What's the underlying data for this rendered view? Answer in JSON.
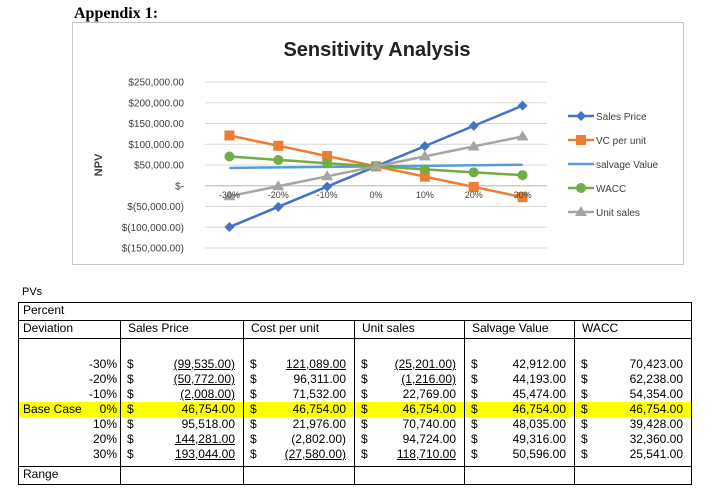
{
  "appendix_title": "Appendix 1:",
  "chart_data": {
    "type": "line",
    "title": "Sensitivity Analysis",
    "ylabel": "NPV",
    "xlabel": "",
    "categories": [
      "-30%",
      "-20%",
      "-10%",
      "0%",
      "10%",
      "20%",
      "30%"
    ],
    "ylim": [
      -150000,
      250000
    ],
    "ytick_labels": [
      "$250,000.00",
      "$200,000.00",
      "$150,000.00",
      "$100,000.00",
      "$50,000.00",
      "$-",
      "$(50,000.00)",
      "$(100,000.00)",
      "$(150,000.00)"
    ],
    "legend_position": "right",
    "series": [
      {
        "name": "Sales Price",
        "color": "#4472c4",
        "marker": "diamond",
        "values": [
          -99535,
          -50772,
          -2008,
          46754,
          95518,
          144281,
          193044
        ]
      },
      {
        "name": "VC per unit",
        "color": "#ed7d31",
        "marker": "square",
        "values": [
          121089,
          96311,
          71532,
          46754,
          21976,
          -2802,
          -27580
        ]
      },
      {
        "name": "salvage Value",
        "color": "#5b9bd5",
        "marker": "none",
        "values": [
          42912,
          44193,
          45474,
          46754,
          48035,
          49316,
          50596
        ]
      },
      {
        "name": "WACC",
        "color": "#70ad47",
        "marker": "circle",
        "values": [
          70423,
          62238,
          54354,
          46754,
          39428,
          32360,
          25541
        ]
      },
      {
        "name": "Unit sales",
        "color": "#a5a5a5",
        "marker": "triangle",
        "values": [
          -25201,
          -1216,
          22769,
          46754,
          70740,
          94724,
          118710
        ]
      }
    ]
  },
  "table": {
    "caption": "PVs",
    "header_line1": "Percent",
    "header_line2": "Deviation",
    "columns": [
      "Sales Price",
      "Cost per unit",
      "Unit sales",
      "Salvage Value",
      "WACC"
    ],
    "rows": [
      {
        "label": "",
        "deviation": "-30%",
        "highlight": false,
        "cells": [
          "(99,535.00)",
          "121,089.00",
          "(25,201.00)",
          "42,912.00",
          "70,423.00"
        ]
      },
      {
        "label": "",
        "deviation": "-20%",
        "highlight": false,
        "cells": [
          "(50,772.00)",
          "96,311.00",
          "(1,216.00)",
          "44,193.00",
          "62,238.00"
        ]
      },
      {
        "label": "",
        "deviation": "-10%",
        "highlight": false,
        "cells": [
          "(2,008.00)",
          "71,532.00",
          "22,769.00",
          "45,474.00",
          "54,354.00"
        ]
      },
      {
        "label": "Base Case",
        "deviation": "0%",
        "highlight": true,
        "cells": [
          "46,754.00",
          "46,754.00",
          "46,754.00",
          "46,754.00",
          "46,754.00"
        ]
      },
      {
        "label": "",
        "deviation": "10%",
        "highlight": false,
        "cells": [
          "95,518.00",
          "21,976.00",
          "70,740.00",
          "48,035.00",
          "39,428.00"
        ]
      },
      {
        "label": "",
        "deviation": "20%",
        "highlight": false,
        "cells": [
          "144,281.00",
          "(2,802.00)",
          "94,724.00",
          "49,316.00",
          "32,360.00"
        ]
      },
      {
        "label": "",
        "deviation": "30%",
        "highlight": false,
        "cells": [
          "193,044.00",
          "(27,580.00)",
          "118,710.00",
          "50,596.00",
          "25,541.00"
        ]
      }
    ],
    "currency_symbol": "$",
    "footer_label": "Range"
  }
}
